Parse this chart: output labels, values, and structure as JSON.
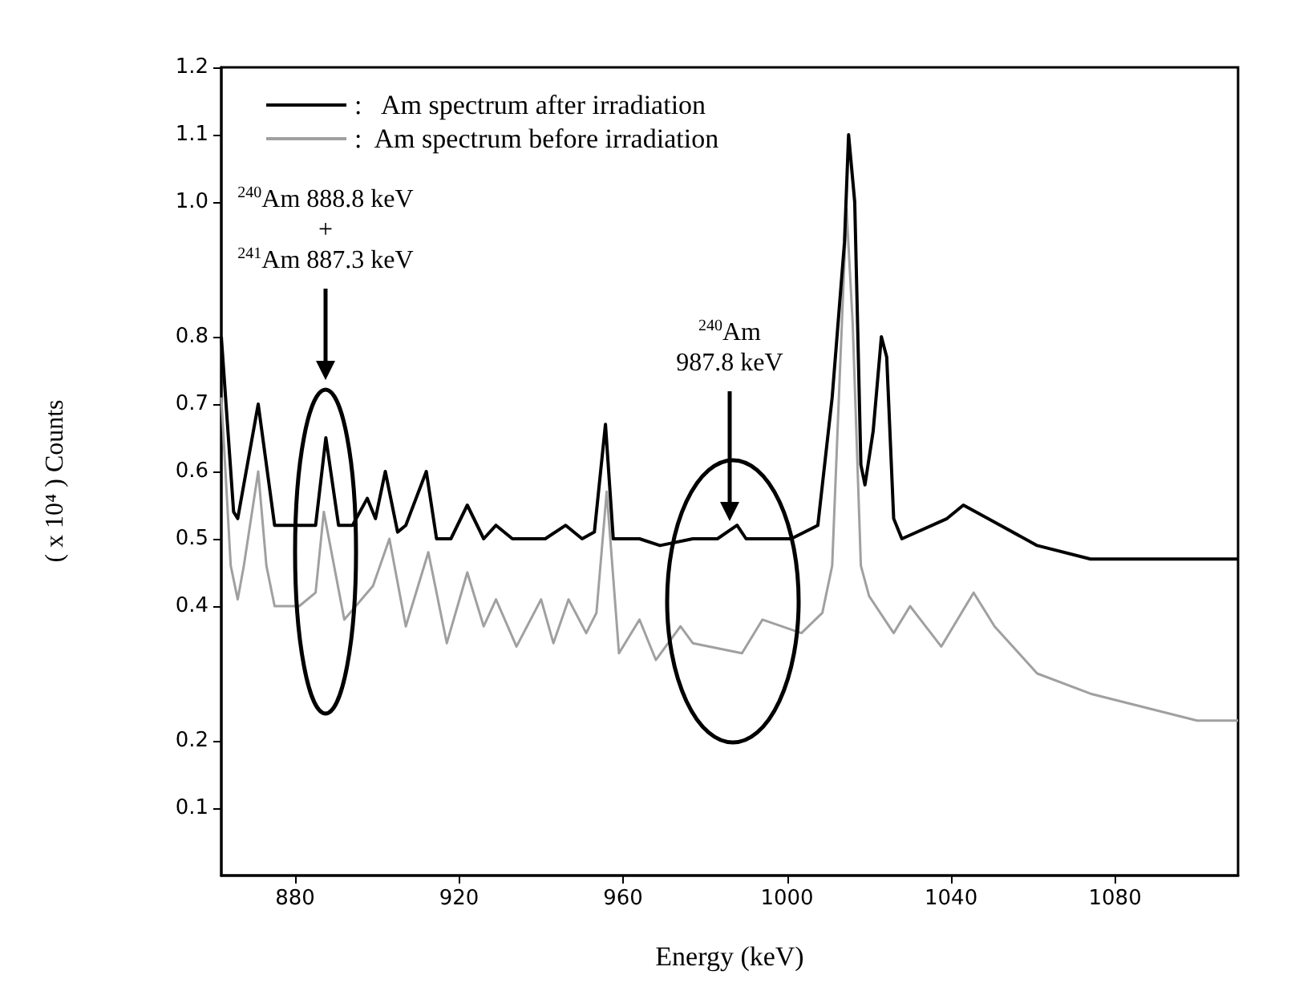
{
  "chart_data": {
    "type": "line",
    "xlabel": "Energy (keV)",
    "ylabel": "( x 10⁴ )  Counts",
    "xlim": [
      862,
      1110
    ],
    "xticks": [
      880,
      920,
      960,
      1000,
      1040,
      1080
    ],
    "ylim": [
      0,
      1.2
    ],
    "yticks": [
      0.1,
      0.2,
      0.4,
      0.5,
      0.6,
      0.7,
      0.8,
      {
        "value": 1.0,
        "label": "1.0"
      },
      1.1,
      1.2
    ],
    "legend": "top left",
    "grid": false,
    "marker": "none",
    "line_style": "solid",
    "series": [
      {
        "name": ":   Am spectrum after irradiation",
        "color": "#000000",
        "x": [
          862,
          865,
          866,
          871,
          875,
          885,
          887.5,
          890.6,
          894,
          897.6,
          899.6,
          902,
          905,
          907,
          912,
          914.5,
          918,
          922,
          926,
          929,
          933,
          941,
          946,
          950,
          953,
          955.7,
          957.6,
          964,
          969,
          977,
          983,
          987.8,
          990,
          1001,
          1007.5,
          1011,
          1014,
          1015,
          1016.5,
          1018,
          1019,
          1021,
          1023,
          1024.3,
          1026,
          1028,
          1039,
          1043,
          1049,
          1061,
          1074,
          1087,
          1100,
          1110
        ],
        "values": [
          0.8,
          0.54,
          0.53,
          0.7,
          0.52,
          0.52,
          0.65,
          0.52,
          0.52,
          0.56,
          0.53,
          0.6,
          0.51,
          0.52,
          0.6,
          0.5,
          0.5,
          0.55,
          0.5,
          0.52,
          0.5,
          0.5,
          0.52,
          0.5,
          0.51,
          0.67,
          0.5,
          0.5,
          0.49,
          0.5,
          0.5,
          0.52,
          0.5,
          0.5,
          0.52,
          0.71,
          0.94,
          1.1,
          1.0,
          0.61,
          0.58,
          0.66,
          0.8,
          0.77,
          0.53,
          0.5,
          0.53,
          0.55,
          0.53,
          0.49,
          0.47,
          0.47,
          0.47,
          0.47
        ]
      },
      {
        "name": ":  Am spectrum before irradiation",
        "color": "#a0a0a0",
        "x": [
          862,
          864.3,
          866,
          867.5,
          871,
          873,
          875,
          881,
          885,
          887,
          892,
          899,
          903,
          907,
          912.5,
          917,
          922,
          926,
          929,
          934,
          940,
          943,
          946.7,
          951,
          953.5,
          956,
          959,
          964,
          968,
          974,
          977,
          989,
          994,
          1003.5,
          1008.6,
          1011,
          1012.7,
          1014.5,
          1016,
          1018,
          1020,
          1026,
          1030,
          1037.6,
          1045.5,
          1050.6,
          1061,
          1074,
          1087,
          1100,
          1110
        ],
        "values": [
          0.71,
          0.46,
          0.41,
          0.46,
          0.6,
          0.46,
          0.4,
          0.4,
          0.42,
          0.54,
          0.38,
          0.43,
          0.5,
          0.37,
          0.48,
          0.345,
          0.45,
          0.37,
          0.41,
          0.34,
          0.41,
          0.345,
          0.41,
          0.36,
          0.39,
          0.57,
          0.33,
          0.38,
          0.32,
          0.37,
          0.345,
          0.33,
          0.38,
          0.36,
          0.39,
          0.46,
          0.72,
          0.99,
          0.82,
          0.46,
          0.415,
          0.36,
          0.4,
          0.34,
          0.42,
          0.37,
          0.3,
          0.27,
          0.25,
          0.23,
          0.23
        ]
      }
    ],
    "annotations": [
      "$^{240}$Am 888.8 keV\n+\n$^{241}$Am 887.3 keV",
      "$^{240}$Am\n987.8 keV"
    ]
  }
}
